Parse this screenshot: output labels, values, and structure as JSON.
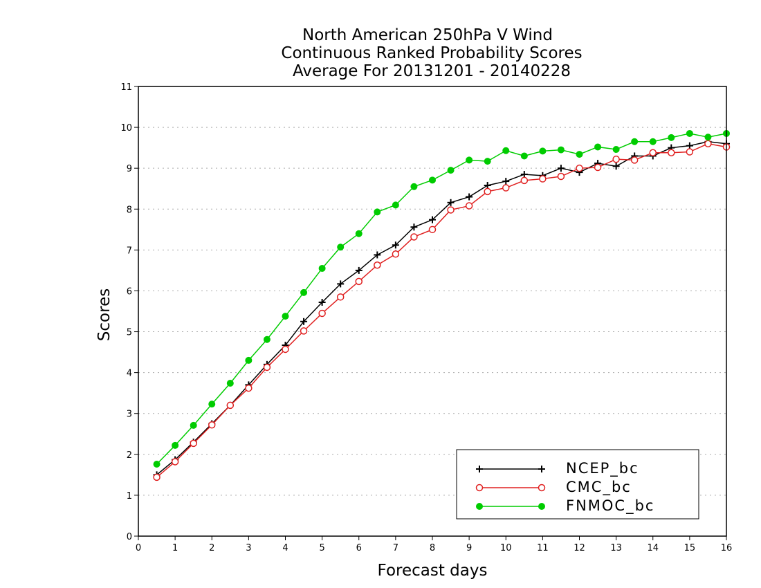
{
  "chart_data": {
    "type": "line",
    "title": [
      "North American 250hPa V Wind",
      "Continuous Ranked Probability Scores",
      "Average For 20131201 - 20140228"
    ],
    "xlabel": "Forecast days",
    "ylabel": "Scores",
    "xlim": [
      0,
      16
    ],
    "ylim": [
      0,
      11
    ],
    "xticks": [
      "0",
      "1",
      "2",
      "3",
      "4",
      "5",
      "6",
      "7",
      "8",
      "9",
      "10",
      "11",
      "12",
      "13",
      "14",
      "15",
      "16"
    ],
    "yticks": [
      "0",
      "1",
      "2",
      "3",
      "4",
      "5",
      "6",
      "7",
      "8",
      "9",
      "10",
      "11"
    ],
    "grid": "horizontal dotted",
    "legend_position": "bottom-right",
    "x": [
      0.5,
      1,
      1.5,
      2,
      2.5,
      3,
      3.5,
      4,
      4.5,
      5,
      5.5,
      6,
      6.5,
      7,
      7.5,
      8,
      8.5,
      9,
      9.5,
      10,
      10.5,
      11,
      11.5,
      12,
      12.5,
      13,
      13.5,
      14,
      14.5,
      15,
      15.5,
      16
    ],
    "series": [
      {
        "name": "NCEP_bc",
        "color": "#000000",
        "marker": "plus",
        "values": [
          1.5,
          1.87,
          2.3,
          2.75,
          3.2,
          3.7,
          4.2,
          4.67,
          5.25,
          5.72,
          6.17,
          6.5,
          6.88,
          7.12,
          7.56,
          7.74,
          8.16,
          8.3,
          8.58,
          8.68,
          8.85,
          8.82,
          9.0,
          8.9,
          9.12,
          9.05,
          9.3,
          9.3,
          9.5,
          9.55,
          9.65,
          9.6
        ]
      },
      {
        "name": "CMC_bc",
        "color": "#e02020",
        "marker": "open-circle",
        "values": [
          1.44,
          1.82,
          2.27,
          2.72,
          3.2,
          3.62,
          4.13,
          4.57,
          5.02,
          5.45,
          5.85,
          6.23,
          6.63,
          6.9,
          7.32,
          7.5,
          7.98,
          8.08,
          8.43,
          8.52,
          8.7,
          8.74,
          8.8,
          9.0,
          9.02,
          9.22,
          9.2,
          9.38,
          9.38,
          9.4,
          9.6,
          9.52
        ]
      },
      {
        "name": "FNMOC_bc",
        "color": "#00cc00",
        "marker": "filled-circle",
        "values": [
          1.76,
          2.22,
          2.71,
          3.23,
          3.74,
          4.3,
          4.81,
          5.38,
          5.96,
          6.55,
          7.07,
          7.4,
          7.93,
          8.1,
          8.55,
          8.71,
          8.95,
          9.2,
          9.17,
          9.43,
          9.3,
          9.42,
          9.45,
          9.34,
          9.52,
          9.46,
          9.65,
          9.65,
          9.75,
          9.85,
          9.76,
          9.85
        ]
      }
    ]
  }
}
